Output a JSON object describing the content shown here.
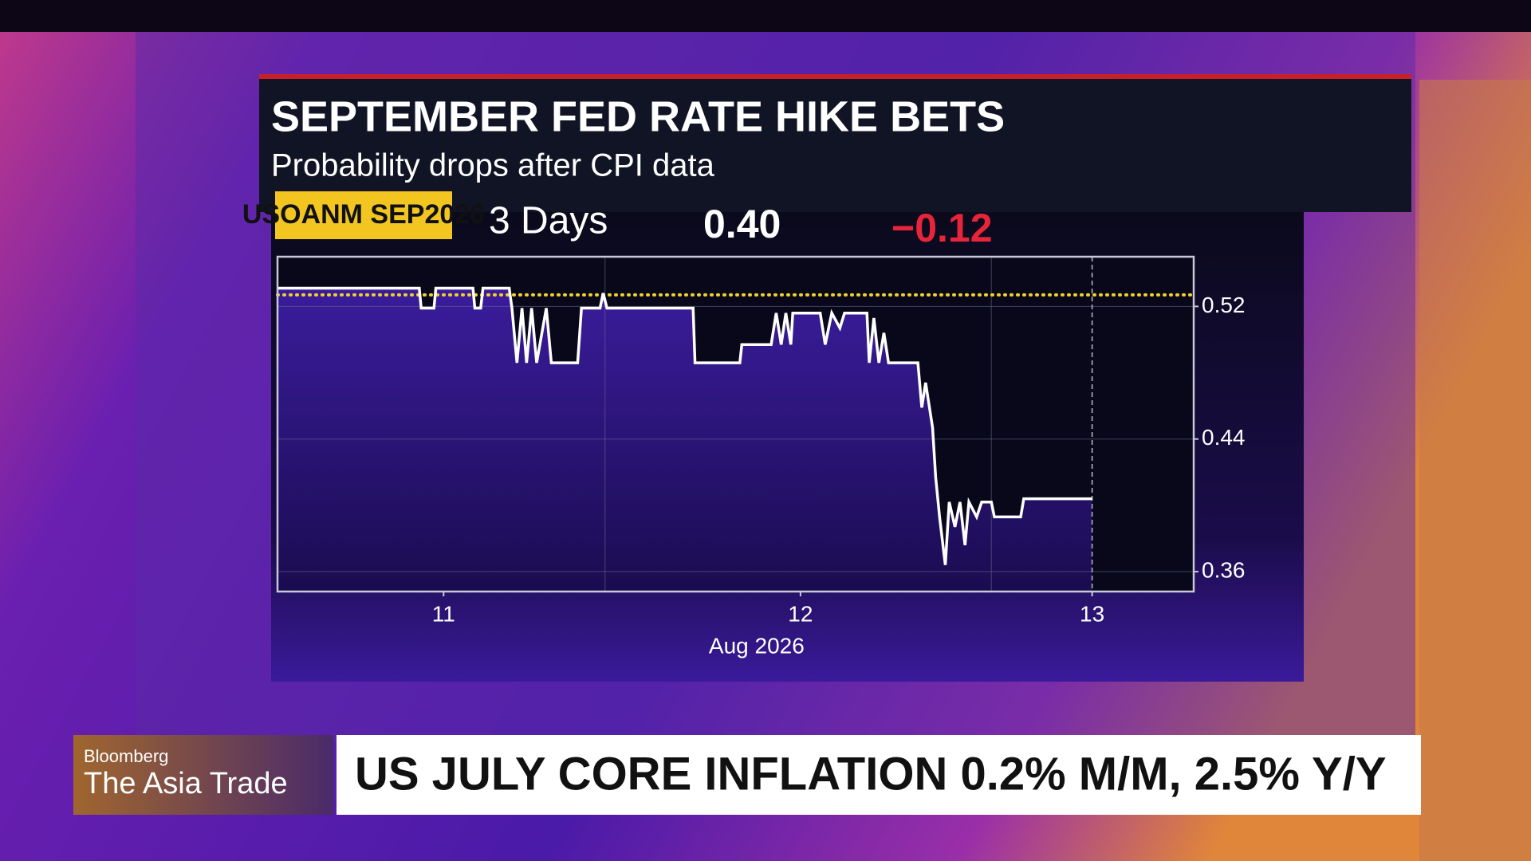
{
  "header": {
    "title": "SEPTEMBER FED RATE HIKE BETS",
    "subtitle": "Probability drops after CPI data"
  },
  "ticker": {
    "symbol": "USOANM SEP2026",
    "period": "3 Days",
    "last": "0.40",
    "change": "−0.12"
  },
  "chart_data": {
    "type": "line",
    "x": [
      11.152,
      11.519,
      11.524,
      11.557,
      11.562,
      11.658,
      11.663,
      11.678,
      11.684,
      11.752,
      11.759,
      11.772,
      11.785,
      11.797,
      11.81,
      11.823,
      11.848,
      11.861,
      11.929,
      11.939,
      11.987,
      11.995,
      12.005,
      12.228,
      12.233,
      12.349,
      12.354,
      12.43,
      12.443,
      12.456,
      12.468,
      12.481,
      12.486,
      12.557,
      12.57,
      12.587,
      12.608,
      12.62,
      12.678,
      12.684,
      12.696,
      12.709,
      12.722,
      12.734,
      12.81,
      12.82,
      12.83,
      12.848,
      12.856,
      12.866,
      12.881,
      12.891,
      12.906,
      12.919,
      12.932,
      12.942,
      12.962,
      12.975,
      13.0,
      13.008,
      13.076,
      13.084,
      13.261
    ],
    "series": [
      {
        "color": "#ffffff",
        "values": [
          0.531,
          0.531,
          0.519,
          0.519,
          0.531,
          0.531,
          0.519,
          0.519,
          0.531,
          0.531,
          0.519,
          0.486,
          0.519,
          0.486,
          0.519,
          0.486,
          0.519,
          0.486,
          0.486,
          0.519,
          0.519,
          0.528,
          0.519,
          0.519,
          0.486,
          0.486,
          0.497,
          0.497,
          0.516,
          0.497,
          0.516,
          0.497,
          0.516,
          0.516,
          0.497,
          0.516,
          0.507,
          0.516,
          0.516,
          0.486,
          0.513,
          0.486,
          0.504,
          0.486,
          0.486,
          0.459,
          0.474,
          0.447,
          0.417,
          0.393,
          0.364,
          0.402,
          0.387,
          0.402,
          0.376,
          0.402,
          0.393,
          0.402,
          0.402,
          0.393,
          0.393,
          0.404,
          0.404
        ]
      }
    ],
    "xlim": [
      11.152,
      13.524
    ],
    "ylim": [
      0.348,
      0.55
    ],
    "xticks": [
      {
        "value": 11.582,
        "label": "11"
      },
      {
        "value": 12.506,
        "label": "12"
      },
      {
        "value": 13.261,
        "label": "13"
      }
    ],
    "xgrid": [
      12,
      13
    ],
    "yticks": [
      0.36,
      0.44,
      0.52
    ],
    "xlabel": "Aug 2026",
    "reference_line": {
      "value": 0.527,
      "color": "#f2d32b"
    },
    "grid": true
  },
  "lower_third": {
    "brand": "Bloomberg",
    "show": "The Asia Trade",
    "headline": "US JULY CORE INFLATION 0.2% M/M, 2.5% Y/Y"
  }
}
